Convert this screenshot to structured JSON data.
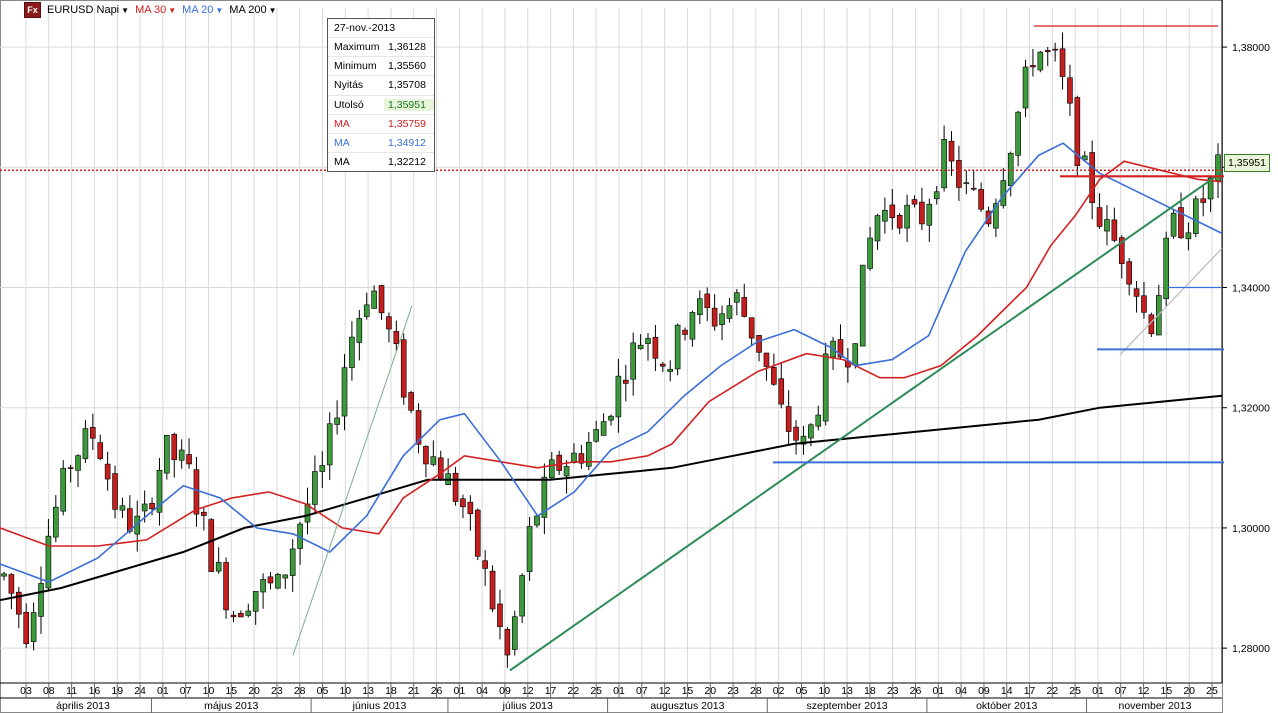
{
  "toolbar": {
    "instrument": "EURUSD Napi",
    "logo_text": "Fx",
    "indicators": [
      {
        "label": "MA 30",
        "color": "#d42020"
      },
      {
        "label": "MA 20",
        "color": "#3a6fd8"
      },
      {
        "label": "MA 200",
        "color": "#000000"
      }
    ],
    "dropdown_icon": "chevron-down-icon"
  },
  "info_box": {
    "date": "27-nov.-2013",
    "rows": [
      {
        "key": "Maximum",
        "value": "1,36128",
        "color": "#000000"
      },
      {
        "key": "Minimum",
        "value": "1,35560",
        "color": "#000000"
      },
      {
        "key": "Nyitás",
        "value": "1,35708",
        "color": "#000000"
      },
      {
        "key": "Utolsó",
        "value": "1,35951",
        "color": "#1a7a1a"
      },
      {
        "key": "MA",
        "value": "1,35759",
        "color": "#d42020"
      },
      {
        "key": "MA",
        "value": "1,34912",
        "color": "#3a6fd8"
      },
      {
        "key": "MA",
        "value": "1,32212",
        "color": "#000000"
      }
    ]
  },
  "last_price_label": "1,35951",
  "chart_data": {
    "type": "candlestick",
    "y_axis": {
      "ylim": [
        1.2742,
        1.3865
      ],
      "ticks": [
        1.28,
        1.3,
        1.32,
        1.34,
        1.36,
        1.38
      ],
      "tick_labels": [
        "1,28000",
        "1,30000",
        "1,32000",
        "1,34000",
        "",
        "1,38000"
      ]
    },
    "x_axis": {
      "day_labels": [
        "03",
        "08",
        "11",
        "16",
        "19",
        "24",
        "01",
        "07",
        "10",
        "15",
        "20",
        "23",
        "28",
        "05",
        "10",
        "13",
        "18",
        "21",
        "26",
        "01",
        "04",
        "09",
        "12",
        "17",
        "22",
        "25",
        "01",
        "07",
        "12",
        "15",
        "20",
        "23",
        "28",
        "02",
        "05",
        "10",
        "13",
        "18",
        "23",
        "26",
        "01",
        "04",
        "09",
        "14",
        "17",
        "22",
        "25",
        "01",
        "07",
        "12",
        "15",
        "20",
        "25"
      ],
      "months": [
        "április 2013",
        "május 2013",
        "június 2013",
        "július 2013",
        "augusztus 2013",
        "szeptember 2013",
        "október 2013",
        "november 2013"
      ]
    },
    "trend_points": [
      1.292,
      1.283,
      1.3,
      1.312,
      1.316,
      1.302,
      1.3,
      1.313,
      1.31,
      1.296,
      1.286,
      1.29,
      1.29,
      1.302,
      1.31,
      1.33,
      1.341,
      1.33,
      1.316,
      1.31,
      1.304,
      1.292,
      1.278,
      1.3,
      1.31,
      1.312,
      1.316,
      1.326,
      1.333,
      1.327,
      1.337,
      1.335,
      1.338,
      1.33,
      1.318,
      1.313,
      1.328,
      1.33,
      1.352,
      1.353,
      1.351,
      1.362,
      1.356,
      1.352,
      1.365,
      1.38,
      1.377,
      1.361,
      1.35,
      1.345,
      1.333,
      1.35,
      1.352,
      1.3595
    ],
    "ma30_points": [
      1.3,
      1.297,
      1.297,
      1.298,
      1.303,
      1.305,
      1.306,
      1.304,
      1.3,
      1.299,
      1.305,
      1.309,
      1.312,
      1.311,
      1.31,
      1.311,
      1.311,
      1.312,
      1.314,
      1.321,
      1.326,
      1.329,
      1.328,
      1.325,
      1.325,
      1.327,
      1.332,
      1.336,
      1.34,
      1.347,
      1.352,
      1.358,
      1.361,
      1.3595,
      1.358,
      1.3576
    ],
    "ma30_x": [
      0.0,
      0.04,
      0.08,
      0.12,
      0.16,
      0.19,
      0.22,
      0.25,
      0.28,
      0.31,
      0.33,
      0.36,
      0.38,
      0.41,
      0.44,
      0.47,
      0.5,
      0.53,
      0.55,
      0.58,
      0.62,
      0.66,
      0.69,
      0.72,
      0.74,
      0.77,
      0.8,
      0.82,
      0.84,
      0.86,
      0.88,
      0.9,
      0.92,
      0.95,
      0.98,
      1.0
    ],
    "ma20_points": [
      1.294,
      1.291,
      1.295,
      1.302,
      1.307,
      1.305,
      1.3,
      1.299,
      1.296,
      1.302,
      1.312,
      1.318,
      1.319,
      1.311,
      1.302,
      1.306,
      1.313,
      1.316,
      1.322,
      1.327,
      1.331,
      1.333,
      1.33,
      1.327,
      1.328,
      1.332,
      1.346,
      1.355,
      1.362,
      1.364,
      1.359,
      1.356,
      1.352,
      1.349
    ],
    "ma20_x": [
      0.0,
      0.04,
      0.08,
      0.12,
      0.15,
      0.18,
      0.21,
      0.24,
      0.27,
      0.3,
      0.33,
      0.36,
      0.38,
      0.41,
      0.44,
      0.47,
      0.5,
      0.53,
      0.56,
      0.59,
      0.62,
      0.65,
      0.68,
      0.7,
      0.73,
      0.76,
      0.79,
      0.82,
      0.85,
      0.87,
      0.9,
      0.93,
      0.97,
      1.0
    ],
    "ma200_points": [
      1.288,
      1.29,
      1.293,
      1.296,
      1.3,
      1.302,
      1.305,
      1.308,
      1.308,
      1.308,
      1.309,
      1.31,
      1.312,
      1.314,
      1.315,
      1.316,
      1.317,
      1.318,
      1.32,
      1.321,
      1.322
    ],
    "ma200_x": [
      0.0,
      0.05,
      0.1,
      0.15,
      0.2,
      0.25,
      0.3,
      0.35,
      0.4,
      0.45,
      0.5,
      0.55,
      0.6,
      0.65,
      0.7,
      0.75,
      0.8,
      0.85,
      0.9,
      0.95,
      1.0
    ]
  },
  "colors": {
    "up_candle": "#3c9a3c",
    "down_candle": "#c41e1e",
    "grid": "#d9d9d9",
    "axis": "#000000",
    "last_line": "#d42020",
    "trendline": "#2e8b57",
    "support_line": "#3a6fd8"
  }
}
